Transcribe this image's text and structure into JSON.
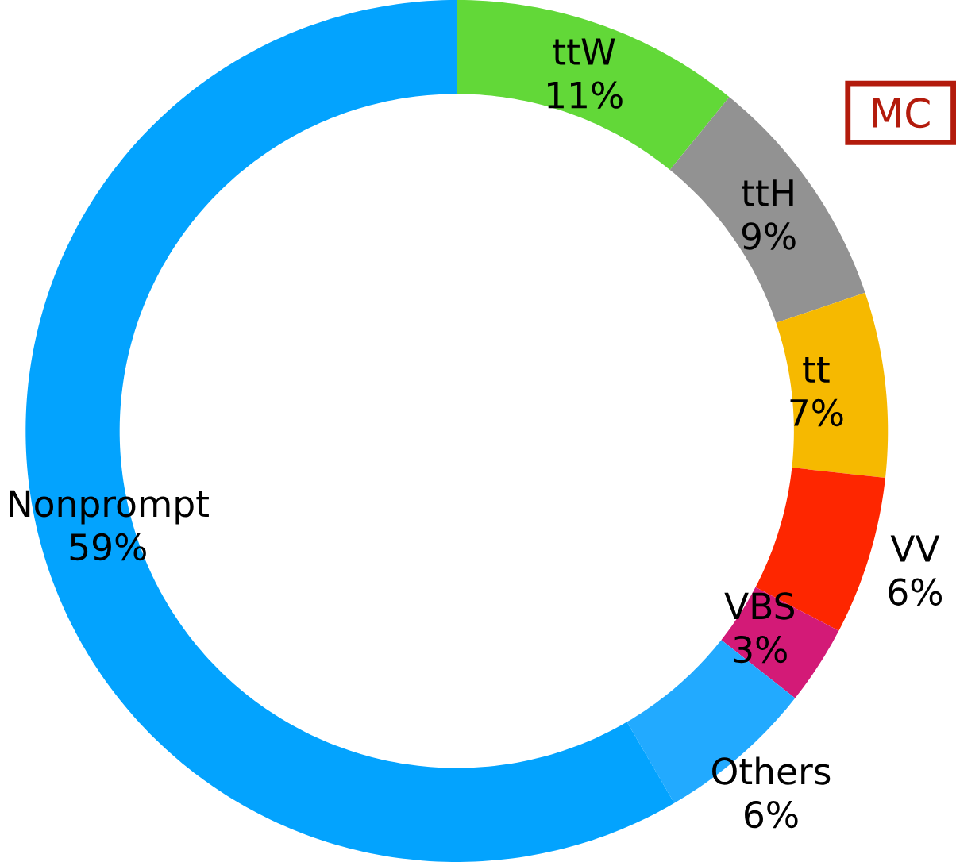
{
  "chart_data": {
    "type": "donut",
    "categories": [
      "ttW",
      "ttH",
      "tt",
      "VV",
      "VBS",
      "Others",
      "Nonprompt"
    ],
    "values": [
      11,
      9,
      7,
      6,
      3,
      6,
      59
    ],
    "value_labels": [
      "11%",
      "9%",
      "7%",
      "6%",
      "3%",
      "6%",
      "59%"
    ],
    "colors": [
      "#62d838",
      "#929292",
      "#f6b900",
      "#fe2600",
      "#d31a77",
      "#22aaff",
      "#03a3fe"
    ],
    "annotations": [
      "MC"
    ]
  }
}
